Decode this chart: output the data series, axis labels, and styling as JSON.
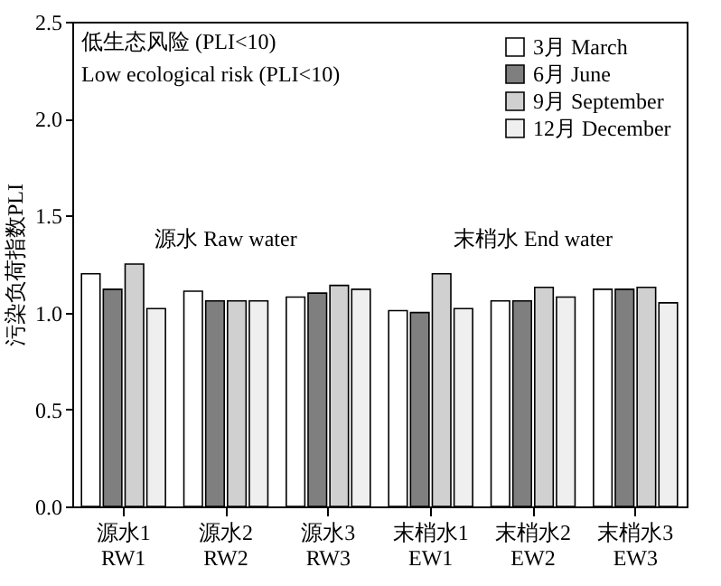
{
  "chart_data": {
    "type": "bar",
    "ylabel": "污染负荷指数PLI",
    "categories": [
      "源水1\nRW1",
      "源水2\nRW2",
      "源水3\nRW3",
      "末梢水1\nEW1",
      "末梢水2\nEW2",
      "末梢水3\nEW3"
    ],
    "series": [
      {
        "name": "3月 March",
        "color": "#ffffff",
        "values": [
          1.2,
          1.11,
          1.08,
          1.01,
          1.06,
          1.12
        ]
      },
      {
        "name": "6月 June",
        "color": "#7f7f7f",
        "values": [
          1.12,
          1.06,
          1.1,
          1.0,
          1.06,
          1.12
        ]
      },
      {
        "name": "9月 September",
        "color": "#d0d0d0",
        "values": [
          1.25,
          1.06,
          1.14,
          1.2,
          1.13,
          1.13
        ]
      },
      {
        "name": "12月 December",
        "color": "#efefef",
        "values": [
          1.02,
          1.06,
          1.12,
          1.02,
          1.08,
          1.05
        ]
      }
    ],
    "ylim": [
      0,
      2.5
    ],
    "yticks": [
      {
        "value": 0,
        "label": "0.0"
      },
      0.5,
      {
        "value": 1,
        "label": "1.0"
      },
      1.5,
      {
        "value": 2,
        "label": "2.0"
      },
      2.5
    ],
    "annotations": [
      "低生态风险 (PLI<10)",
      "Low ecological risk (PLI<10)",
      "源水 Raw water",
      "末梢水 End water"
    ],
    "legend": "top right",
    "grid": false
  }
}
